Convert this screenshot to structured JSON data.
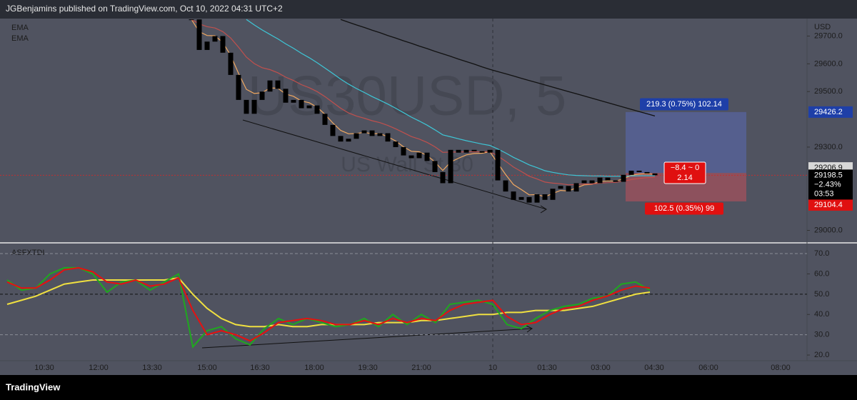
{
  "header": {
    "text": "JGBenjamins published on TradingView.com, Oct 10, 2022 04:31 UTC+2"
  },
  "footer": {
    "brand": "TradingView"
  },
  "chart_data": [
    {
      "type": "candlestick",
      "symbol_watermark": "US30USD, 5",
      "description_watermark": "US Wall St 30",
      "indicator_labels": [
        "EMA",
        "EMA"
      ],
      "currency": "USD",
      "candle_color": "#000000",
      "close": [
        29760,
        29650,
        29680,
        29700,
        29640,
        29560,
        29470,
        29420,
        29470,
        29500,
        29540,
        29510,
        29460,
        29470,
        29440,
        29450,
        29420,
        29380,
        29340,
        29320,
        29330,
        29350,
        29360,
        29340,
        29350,
        29320,
        29300,
        29270,
        29260,
        29280,
        29250,
        29210,
        29170,
        29290,
        29280,
        29290,
        29285,
        29280,
        29290,
        29180,
        29140,
        29110,
        29120,
        29100,
        29130,
        29110,
        29150,
        29160,
        29140,
        29170,
        29180,
        29170,
        29190,
        29180,
        29175,
        29200,
        29215,
        29210,
        29205,
        29198.5
      ],
      "series": [
        {
          "color": "#f0a860",
          "values": [
            29760,
            29716,
            29702,
            29701,
            29677,
            29630,
            29566,
            29508,
            29493,
            29496,
            29513,
            29512,
            29491,
            29483,
            29466,
            29460,
            29444,
            29418,
            29387,
            29360,
            29348,
            29349,
            29353,
            29348,
            29349,
            29337,
            29322,
            29301,
            29285,
            29283,
            29270,
            29246,
            29216,
            29246,
            29260,
            29272,
            29277,
            29278,
            29283,
            29242,
            29201,
            29165,
            29147,
            29128,
            29129,
            29121,
            29133,
            29144,
            29142,
            29153,
            29164,
            29166,
            29176,
            29178,
            29177,
            29186,
            29198,
            29203,
            29204,
            29202
          ]
        },
        {
          "color": "#c0504d",
          "values": [
            29760,
            29744,
            29734,
            29729,
            29716,
            29693,
            29660,
            29624,
            29601,
            29586,
            29579,
            29568,
            29552,
            29540,
            29525,
            29514,
            29500,
            29482,
            29461,
            29440,
            29423,
            29412,
            29404,
            29395,
            29388,
            29378,
            29366,
            29352,
            29338,
            29329,
            29317,
            29301,
            29281,
            29282,
            29282,
            29283,
            29283,
            29283,
            29284,
            29268,
            29249,
            29228,
            29212,
            29195,
            29185,
            29174,
            29170,
            29168,
            29164,
            29165,
            29167,
            29167,
            29170,
            29172,
            29173,
            29177,
            29183,
            29187,
            29190,
            29191
          ]
        },
        {
          "color": "#3ec6d6",
          "values": [
            null,
            null,
            null,
            null,
            null,
            null,
            null,
            29760,
            29740,
            29722,
            29706,
            29690,
            29672,
            29656,
            29638,
            29622,
            29604,
            29585,
            29565,
            29545,
            29527,
            29511,
            29497,
            29482,
            29469,
            29455,
            29440,
            29424,
            29408,
            29394,
            29379,
            29362,
            29344,
            29337,
            29330,
            29323,
            29317,
            29311,
            29306,
            29293,
            29279,
            29263,
            29250,
            29236,
            29226,
            29215,
            29209,
            29204,
            29200,
            29198,
            29197,
            29196,
            29196,
            29195,
            29195,
            29195,
            29196,
            29197,
            29197,
            29197
          ]
        },
        {
          "color": "#111111",
          "values": [
            null,
            null,
            null,
            null,
            null,
            null,
            null,
            null,
            null,
            null,
            null,
            null,
            null,
            null,
            null,
            null,
            null,
            null,
            null,
            29760,
            29750,
            29740,
            29731,
            29721,
            29712,
            29702,
            29693,
            29683,
            29674,
            29664,
            29655,
            29645,
            29636,
            29627,
            29617,
            29608,
            29599,
            29589,
            29580,
            29572,
            29564,
            29556,
            29548,
            29540,
            29532,
            29524,
            29516,
            29508,
            29500,
            29492,
            29484,
            29476,
            29468,
            29460,
            29452,
            29444,
            29436,
            29428,
            29420,
            29412
          ]
        }
      ],
      "ylim": [
        28955,
        29763
      ],
      "yticks": [
        {
          "value": 29000,
          "label": "29000.0"
        },
        {
          "value": 29300,
          "label": "29300.0"
        },
        {
          "value": 29500,
          "label": "29500.0"
        },
        {
          "value": 29600,
          "label": "29600.0"
        },
        {
          "value": 29700,
          "label": "29700.0"
        }
      ],
      "last_price": 29198.5,
      "last_change_label": "−2.43%",
      "countdown": "03:53",
      "position": {
        "target": 29426.2,
        "entry": 29206.9,
        "stop": 29104.4,
        "target_label": "219.3 (0.75%) 102.14",
        "stop_label": "102.5 (0.35%) 99",
        "pnl_label": "−8.4 ~ 0",
        "ratio": 2.14
      },
      "time_labels": [
        "10:30",
        "12:00",
        "13:30",
        "15:00",
        "16:30",
        "18:00",
        "19:30",
        "21:00",
        "10",
        "01:30",
        "03:00",
        "04:30",
        "06:00",
        "08:00"
      ]
    },
    {
      "type": "line",
      "title": "ASFXTDI",
      "series": [
        {
          "color": "#f0e040",
          "values": [
            45,
            47,
            49,
            52,
            55,
            56,
            57,
            57,
            57,
            57,
            57,
            57,
            58,
            50,
            43,
            38,
            35,
            34,
            34,
            35,
            34,
            34,
            35,
            35,
            35,
            35,
            36,
            36,
            36,
            37,
            37,
            38,
            39,
            40,
            40,
            41,
            41,
            42,
            42,
            42,
            43,
            44,
            46,
            48,
            50,
            51
          ]
        },
        {
          "color": "#1fa81f",
          "values": [
            57,
            52,
            53,
            60,
            63,
            63,
            60,
            51,
            56,
            57,
            52,
            56,
            60,
            24,
            32,
            34,
            28,
            25,
            33,
            38,
            35,
            38,
            36,
            34,
            35,
            38,
            34,
            40,
            35,
            40,
            36,
            45,
            46,
            47,
            45,
            35,
            33,
            38,
            42,
            44,
            45,
            48,
            49,
            55,
            56,
            52
          ]
        },
        {
          "color": "#e81010",
          "values": [
            56,
            53,
            53,
            57,
            62,
            63,
            61,
            56,
            55,
            57,
            54,
            55,
            58,
            42,
            30,
            32,
            30,
            27,
            31,
            36,
            37,
            38,
            37,
            35,
            35,
            37,
            35,
            38,
            36,
            38,
            37,
            42,
            45,
            46,
            47,
            39,
            35,
            36,
            40,
            43,
            44,
            47,
            49,
            52,
            54,
            53
          ]
        }
      ],
      "ylim": [
        17.2,
        75.3
      ],
      "yticks": [
        {
          "value": 20,
          "label": "20.0"
        },
        {
          "value": 30,
          "label": "30.0"
        },
        {
          "value": 40,
          "label": "40.0"
        },
        {
          "value": 50,
          "label": "50.0"
        },
        {
          "value": 60,
          "label": "60.0"
        },
        {
          "value": 70,
          "label": "70.0"
        }
      ]
    }
  ]
}
